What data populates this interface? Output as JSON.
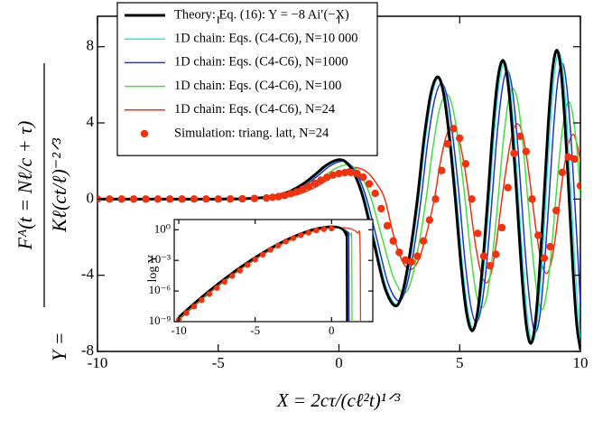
{
  "chart_data": [
    {
      "type": "line",
      "xlabel": "X = 2cτ/(cℓ²t)¹ᐟ³",
      "ylabel": {
        "lhs": "Y =",
        "numerator": "Fᴬ(t = Nℓ/c + τ)",
        "denominator": "Kℓ(ct/ℓ)⁻²ᐟ³"
      },
      "xlim": [
        -10,
        10
      ],
      "ylim": [
        -8,
        9.6
      ],
      "xticks": [
        -10,
        -5,
        0,
        5,
        10
      ],
      "yticks": [
        -8,
        -4,
        0,
        4,
        8
      ],
      "legend": "upper left",
      "series": [
        {
          "name": "Theory: Eq. (16):  Y = −8 Ai′(−X)",
          "type": "line",
          "color": "#000000",
          "width": 3,
          "x": [
            -10,
            -8,
            -7,
            -6,
            -5,
            -4,
            -3,
            -2.5,
            -2,
            -1.5,
            -1,
            -0.5,
            0,
            0.34,
            0.68,
            1.019,
            1.46,
            1.9,
            2.338,
            2.641,
            2.945,
            3.248,
            3.528,
            3.808,
            4.088,
            4.332,
            4.576,
            4.82,
            5.054,
            5.287,
            5.521,
            5.735,
            5.949,
            6.163,
            6.371,
            6.579,
            6.787,
            6.982,
            7.177,
            7.372,
            7.563,
            7.753,
            7.944,
            8.126,
            8.307,
            8.489,
            8.667,
            8.845,
            9.023,
            9.194,
            9.364,
            9.535,
            9.7,
            9.85,
            10
          ],
          "values": [
            0,
            0,
            2e-05,
            0.0002,
            0.002,
            0.016,
            0.096,
            0.21,
            0.425,
            0.78,
            1.273,
            1.799,
            2.07,
            1.88,
            1.21,
            0,
            -2.35,
            -4.65,
            -5.61,
            -4.86,
            -2.81,
            0,
            3.21,
            5.56,
            6.42,
            5.56,
            3.21,
            0,
            -3.46,
            -5.99,
            -6.92,
            -5.99,
            -3.46,
            0,
            3.65,
            6.31,
            7.29,
            6.31,
            3.65,
            0,
            -3.79,
            -6.56,
            -7.58,
            -6.56,
            -3.79,
            0,
            3.91,
            6.77,
            7.82,
            6.77,
            3.91,
            0,
            -3.9,
            -6.6,
            -7.9
          ]
        },
        {
          "name": "1D chain: Eqs. (C4-C6), N=10 000",
          "type": "line",
          "color": "#33e0e8",
          "width": 1.5,
          "x": [
            -10,
            -8,
            -7,
            -6,
            -5,
            -4,
            -2.95,
            -2.45,
            -1.95,
            -1.45,
            -0.95,
            -0.45,
            0.05,
            0.39,
            0.73,
            1.07,
            1.51,
            1.95,
            2.39,
            2.69,
            3.0,
            3.3,
            3.58,
            3.86,
            4.14,
            4.39,
            4.63,
            4.88,
            5.11,
            5.35,
            5.58,
            5.8,
            6.01,
            6.23,
            6.44,
            6.65,
            6.86,
            7.05,
            7.25,
            7.44,
            7.64,
            7.83,
            8.02,
            8.2,
            8.39,
            8.57,
            8.75,
            8.93,
            9.11,
            9.28,
            9.45,
            9.62,
            9.79,
            9.94,
            10
          ],
          "values": [
            0,
            0,
            2e-05,
            0.0002,
            0.002,
            0.016,
            0.095,
            0.21,
            0.42,
            0.77,
            1.26,
            1.78,
            2.05,
            1.86,
            1.2,
            0,
            -2.33,
            -4.6,
            -5.56,
            -4.81,
            -2.78,
            0,
            3.18,
            5.5,
            6.35,
            5.5,
            3.18,
            0,
            -3.42,
            -5.92,
            -6.84,
            -5.92,
            -3.42,
            0,
            3.6,
            6.23,
            7.2,
            6.23,
            3.6,
            0,
            -3.74,
            -6.48,
            -7.48,
            -6.48,
            -3.74,
            0,
            3.85,
            6.67,
            7.7,
            6.67,
            3.85,
            0,
            -3.85,
            -6.5,
            -7.7
          ]
        },
        {
          "name": "1D chain: Eqs. (C4-C6), N=1000",
          "type": "line",
          "color": "#2233cc",
          "width": 1.5,
          "x": [
            -10,
            -8,
            -7,
            -6,
            -5,
            -4,
            -2.88,
            -2.38,
            -1.88,
            -1.38,
            -0.88,
            -0.38,
            0.12,
            0.46,
            0.81,
            1.15,
            1.6,
            2.04,
            2.48,
            2.79,
            3.1,
            3.4,
            3.68,
            3.97,
            4.25,
            4.5,
            4.74,
            4.99,
            5.22,
            5.46,
            5.69,
            5.91,
            6.13,
            6.34,
            6.55,
            6.77,
            6.97,
            7.17,
            7.37,
            7.56,
            7.76,
            7.96,
            8.14,
            8.33,
            8.51,
            8.7,
            8.88,
            9.06,
            9.24,
            9.41,
            9.59,
            9.76,
            9.92,
            10
          ],
          "values": [
            0,
            0,
            2e-05,
            0.0002,
            0.002,
            0.015,
            0.09,
            0.2,
            0.41,
            0.75,
            1.22,
            1.73,
            1.99,
            1.8,
            1.16,
            0,
            -2.25,
            -4.44,
            -5.35,
            -4.62,
            -2.67,
            0,
            3.04,
            5.27,
            6.08,
            5.25,
            3.03,
            0,
            -3.24,
            -5.61,
            -6.48,
            -5.6,
            -3.23,
            0,
            3.38,
            5.86,
            6.77,
            5.85,
            3.38,
            0,
            -3.49,
            -6.05,
            -6.99,
            -6.04,
            -3.49,
            0,
            3.57,
            6.19,
            7.15,
            6.18,
            3.57,
            0,
            -3.6,
            -5.5
          ]
        },
        {
          "name": "1D chain: Eqs. (C4-C6), N=100",
          "type": "line",
          "color": "#44dd44",
          "width": 1.5,
          "x": [
            -10,
            -8,
            -7,
            -6,
            -5,
            -4,
            -2.7,
            -2.2,
            -1.7,
            -1.2,
            -0.7,
            -0.2,
            0.3,
            0.65,
            1.0,
            1.34,
            1.79,
            2.24,
            2.68,
            3.0,
            3.3,
            3.61,
            3.9,
            4.18,
            4.47,
            4.72,
            4.97,
            5.22,
            5.46,
            5.69,
            5.93,
            6.15,
            6.37,
            6.59,
            6.8,
            7.01,
            7.22,
            7.42,
            7.62,
            7.82,
            8.02,
            8.22,
            8.42,
            8.6,
            8.79,
            8.98,
            9.16,
            9.35,
            9.53,
            9.7,
            9.87,
            10
          ],
          "values": [
            0,
            0,
            2e-05,
            0.0002,
            0.002,
            0.014,
            0.085,
            0.19,
            0.37,
            0.68,
            1.1,
            1.57,
            1.8,
            1.64,
            1.05,
            0,
            -2.05,
            -4.05,
            -4.95,
            -4.25,
            -2.46,
            0,
            2.78,
            4.8,
            5.5,
            4.75,
            2.74,
            0,
            -2.9,
            -5.0,
            -5.7,
            -4.95,
            -2.85,
            0,
            2.95,
            5.1,
            5.8,
            5.0,
            2.88,
            0,
            -2.9,
            -5.0,
            -5.8,
            -4.9,
            -2.82,
            0,
            2.6,
            4.45,
            5.1,
            4.3,
            2.45,
            0
          ]
        },
        {
          "name": "1D chain: Eqs. (C4-C6), N=24",
          "type": "line",
          "color": "#ee3311",
          "width": 1.5,
          "x": [
            -10,
            -8,
            -7,
            -6,
            -5,
            -4,
            -2.5,
            -2,
            -1.5,
            -1,
            -0.5,
            0,
            0.5,
            0.75,
            1.15,
            1.55,
            1.9,
            2.25,
            2.6,
            2.95,
            3.3,
            3.62,
            3.95,
            4.2,
            4.45,
            4.7,
            4.93,
            5.17,
            5.4,
            5.63,
            5.87,
            6.1,
            6.32,
            6.53,
            6.75,
            6.97,
            7.18,
            7.4,
            7.6,
            7.8,
            8.0,
            8.2,
            8.4,
            8.6,
            8.78,
            8.97,
            9.15,
            9.33,
            9.52,
            9.7,
            9.85,
            10
          ],
          "values": [
            0,
            0,
            2e-05,
            0.0002,
            0.0015,
            0.012,
            0.075,
            0.16,
            0.33,
            0.61,
            0.99,
            1.4,
            1.61,
            1.65,
            1.43,
            0.83,
            0,
            -1.85,
            -3.2,
            -3.7,
            -3.2,
            -1.85,
            0,
            1.93,
            3.33,
            3.85,
            3.33,
            1.93,
            0,
            -2.2,
            -3.81,
            -4.4,
            -3.81,
            -2.2,
            0,
            1.98,
            3.42,
            3.95,
            3.42,
            1.98,
            0,
            -1.95,
            -3.38,
            -3.9,
            -3.38,
            -1.95,
            0,
            1.7,
            2.94,
            3.4,
            2.94,
            2.0
          ]
        },
        {
          "name": "Simulation: triang. latt, N=24",
          "type": "scatter",
          "color": "#ee3311",
          "x": [
            -10,
            -9.5,
            -9,
            -8.5,
            -8,
            -7.5,
            -7,
            -6.5,
            -6,
            -5.5,
            -5,
            -4.5,
            -4,
            -3.5,
            -3,
            -2.75,
            -2.5,
            -2.25,
            -2,
            -1.75,
            -1.5,
            -1.25,
            -1,
            -0.75,
            -0.5,
            -0.25,
            0,
            0.25,
            0.5,
            0.75,
            1,
            1.25,
            1.5,
            1.75,
            2,
            2.25,
            2.5,
            2.75,
            3,
            3.25,
            3.5,
            3.75,
            4,
            4.25,
            4.5,
            4.75,
            5,
            5.25,
            5.5,
            5.75,
            6,
            6.25,
            6.5,
            6.75,
            7,
            7.25,
            7.5,
            7.75,
            8,
            8.25,
            8.5,
            8.75,
            9,
            9.25,
            9.5,
            9.75,
            10
          ],
          "values": [
            0,
            0,
            0,
            0,
            0,
            0,
            0,
            0,
            0.001,
            0.001,
            0.002,
            0.005,
            0.012,
            0.03,
            0.06,
            0.09,
            0.13,
            0.19,
            0.28,
            0.38,
            0.52,
            0.67,
            0.83,
            0.99,
            1.14,
            1.26,
            1.34,
            1.39,
            1.4,
            1.34,
            1.15,
            0.8,
            0.3,
            -0.5,
            -1.4,
            -2.2,
            -2.8,
            -3.2,
            -3.3,
            -3.0,
            -2.2,
            -1.1,
            0,
            1.5,
            2.9,
            3.7,
            3.2,
            1.85,
            0,
            -1.8,
            -3.0,
            -3.5,
            -2.9,
            -1.5,
            0.6,
            2.4,
            3.3,
            2.5,
            0,
            -1.9,
            -3.1,
            -2.5,
            -0.6,
            1.4,
            2.2,
            2.1,
            0.7
          ]
        }
      ]
    },
    {
      "type": "line",
      "ylabel": "log Y",
      "xlim": [
        -10.3,
        2.7
      ],
      "ylim": [
        1e-09,
        10
      ],
      "log_y": true,
      "xticks": [
        -10,
        -5,
        0
      ],
      "yticks": [
        {
          "value": 1,
          "label": "10⁰"
        },
        {
          "value": 0.001,
          "label": "10⁻³"
        },
        {
          "value": 1e-06,
          "label": "10⁻⁶"
        },
        {
          "value": 1e-09,
          "label": "10⁻⁹"
        }
      ],
      "series": [
        {
          "type": "line",
          "color": "#000000",
          "width": 2.5,
          "x": [
            -10,
            -9,
            -8,
            -7,
            -6,
            -5,
            -4,
            -3,
            -2,
            -1,
            0,
            0.5,
            0.8,
            0.95,
            1.0,
            1.02
          ],
          "values": [
            2.8e-09,
            5.9e-08,
            1.07e-06,
            1.6e-05,
            0.000196,
            0.002,
            0.0157,
            0.0956,
            0.425,
            1.273,
            2.07,
            1.63,
            0.846,
            0.29,
            0.081,
            1e-10
          ]
        },
        {
          "type": "line",
          "color": "#33e0e8",
          "width": 1.3,
          "x": [
            -10,
            -8,
            -6,
            -4,
            -2,
            -1,
            0,
            0.5,
            0.85,
            1.0,
            1.05,
            1.07
          ],
          "values": [
            2.7e-09,
            1.05e-06,
            0.00019,
            0.0155,
            0.42,
            1.26,
            2.05,
            1.7,
            0.85,
            0.3,
            0.08,
            1e-10
          ]
        },
        {
          "type": "line",
          "color": "#2233cc",
          "width": 1.3,
          "x": [
            -10,
            -8,
            -6,
            -4,
            -2,
            -1,
            0,
            0.5,
            0.9,
            1.08,
            1.13,
            1.15
          ],
          "values": [
            2.5e-09,
            1e-06,
            0.00018,
            0.015,
            0.41,
            1.22,
            1.99,
            1.75,
            0.85,
            0.3,
            0.08,
            1e-10
          ]
        },
        {
          "type": "line",
          "color": "#44dd44",
          "width": 1.3,
          "x": [
            -10,
            -8,
            -6,
            -4,
            -2,
            -1,
            0,
            0.5,
            1.0,
            1.25,
            1.32,
            1.34
          ],
          "values": [
            2e-09,
            8e-07,
            0.00016,
            0.013,
            0.36,
            1.1,
            1.75,
            1.7,
            0.8,
            0.28,
            0.07,
            1e-10
          ]
        },
        {
          "type": "line",
          "color": "#ee3311",
          "width": 1.3,
          "x": [
            -10,
            -8,
            -6,
            -4,
            -2,
            -1,
            0,
            0.5,
            1.2,
            1.7,
            1.86,
            1.9
          ],
          "values": [
            1.5e-09,
            6e-07,
            0.00012,
            0.01,
            0.28,
            0.9,
            1.5,
            1.61,
            1.3,
            0.5,
            0.1,
            1e-10
          ]
        },
        {
          "type": "scatter",
          "color": "#ee3311",
          "x": [
            -10,
            -9.5,
            -9,
            -8.5,
            -8,
            -7.5,
            -7,
            -6.5,
            -6,
            -5.5,
            -5,
            -4.5,
            -4,
            -3.5,
            -3,
            -2.5,
            -2,
            -1.5,
            -1,
            -0.5,
            0
          ],
          "values": [
            1.5e-09,
            7e-09,
            3e-08,
            1.3e-07,
            5e-07,
            2e-06,
            8e-06,
            3e-05,
            0.0001,
            0.00035,
            0.0012,
            0.0037,
            0.011,
            0.028,
            0.07,
            0.15,
            0.3,
            0.52,
            0.85,
            1.14,
            1.35
          ]
        }
      ]
    }
  ]
}
